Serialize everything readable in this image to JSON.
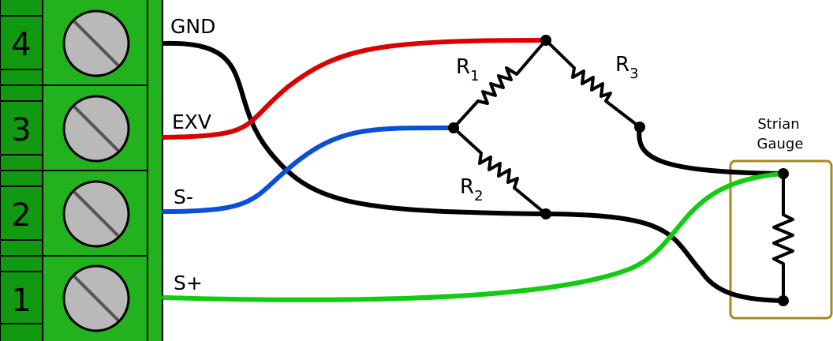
{
  "terminal_block": {
    "color": "#22b21e",
    "dark_color": "#119a11",
    "positions": [
      {
        "number": "4",
        "wire_label": "GND",
        "wire_color": "#000000"
      },
      {
        "number": "3",
        "wire_label": "EXV",
        "wire_color": "#dd0000"
      },
      {
        "number": "2",
        "wire_label": "S-",
        "wire_color": "#0a4fd8"
      },
      {
        "number": "1",
        "wire_label": "S+",
        "wire_color": "#11cc11"
      }
    ]
  },
  "bridge": {
    "r1": {
      "main": "R",
      "sub": "1"
    },
    "r2": {
      "main": "R",
      "sub": "2"
    },
    "r3": {
      "main": "R",
      "sub": "3"
    }
  },
  "strain_gauge": {
    "line1": "Strian",
    "line2": "Gauge",
    "box_color": "#a88a1a"
  }
}
